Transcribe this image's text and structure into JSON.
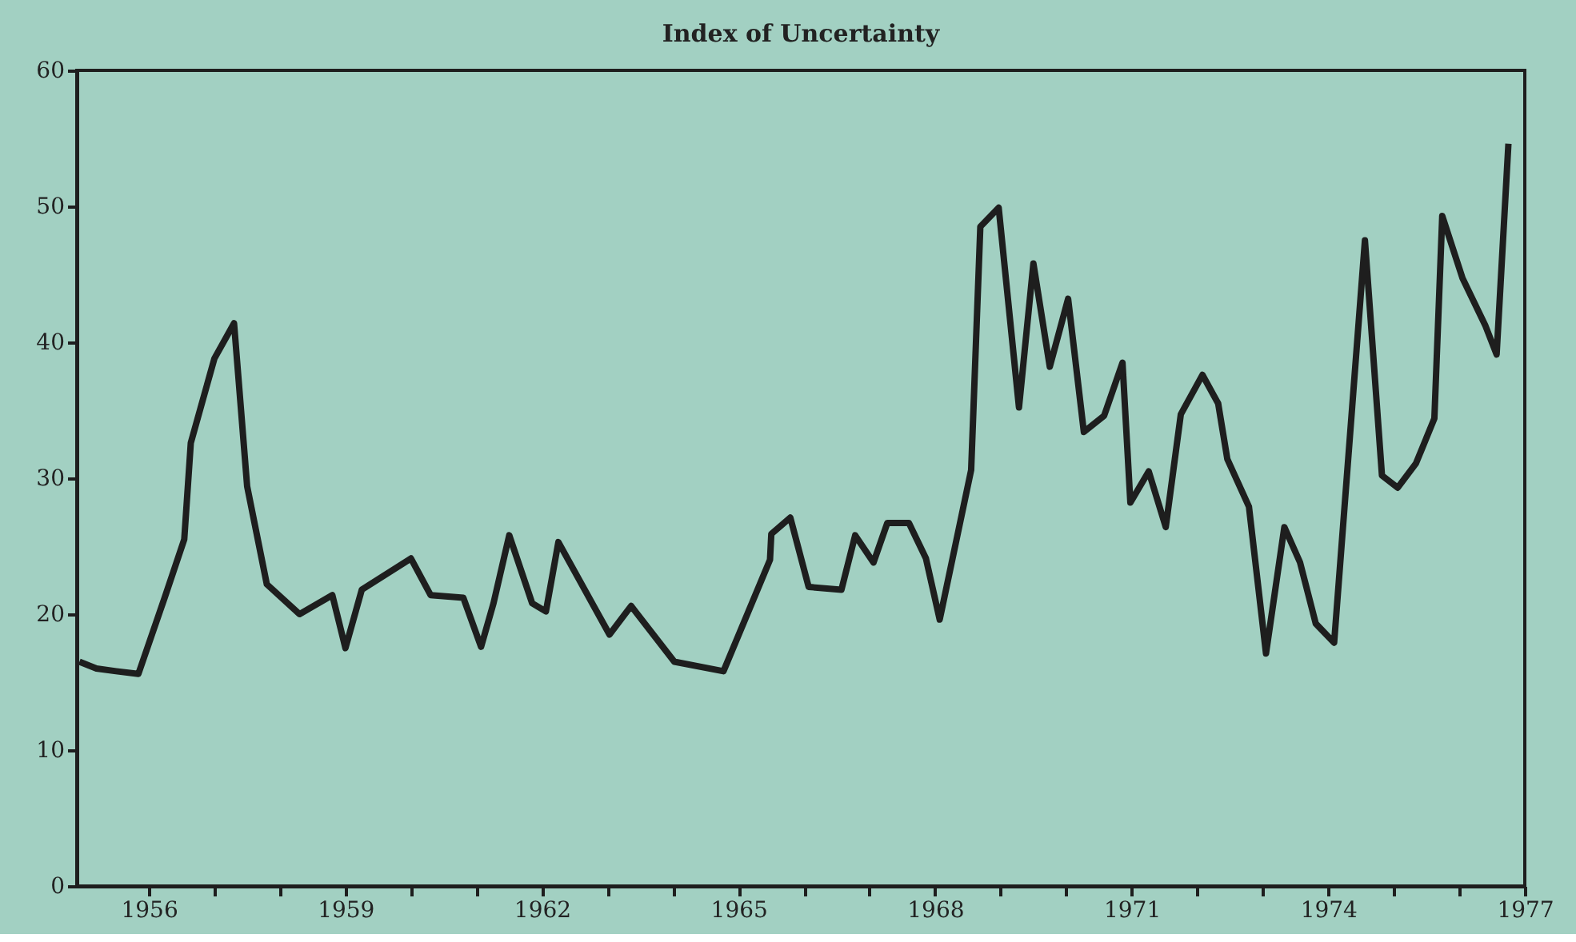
{
  "chart_data": {
    "type": "line",
    "title": "Index of Uncertainty",
    "x": [
      1954.94,
      1955.2,
      1955.5,
      1955.84,
      1956.24,
      1956.54,
      1956.64,
      1957.0,
      1957.3,
      1957.5,
      1957.8,
      1958.3,
      1958.8,
      1959.0,
      1959.25,
      1960.0,
      1960.3,
      1960.8,
      1961.07,
      1961.26,
      1961.5,
      1961.85,
      1962.06,
      1962.25,
      1963.03,
      1963.36,
      1964.02,
      1964.77,
      1965.48,
      1965.5,
      1965.79,
      1966.07,
      1966.57,
      1966.78,
      1967.06,
      1967.27,
      1967.6,
      1967.86,
      1968.07,
      1968.55,
      1968.69,
      1968.97,
      1969.28,
      1969.5,
      1969.75,
      1970.03,
      1970.27,
      1970.58,
      1970.86,
      1970.98,
      1971.26,
      1971.52,
      1971.75,
      1972.08,
      1972.32,
      1972.46,
      1972.79,
      1973.05,
      1973.33,
      1973.57,
      1973.81,
      1974.09,
      1974.56,
      1974.82,
      1975.06,
      1975.34,
      1975.62,
      1975.74,
      1976.05,
      1976.4,
      1976.57,
      1976.75
    ],
    "series": [
      {
        "color": "#1e1e1e",
        "values": [
          16.5,
          16.0,
          15.8,
          15.6,
          21.2,
          25.5,
          32.6,
          38.8,
          41.4,
          29.4,
          22.2,
          20.0,
          21.4,
          17.5,
          21.8,
          24.1,
          21.4,
          21.2,
          17.6,
          20.8,
          25.8,
          20.8,
          20.2,
          25.3,
          18.5,
          20.6,
          16.5,
          15.8,
          24.0,
          25.9,
          27.1,
          22.0,
          21.8,
          25.8,
          23.8,
          26.7,
          26.7,
          24.1,
          19.6,
          30.6,
          48.5,
          49.9,
          35.2,
          45.8,
          38.2,
          43.2,
          33.4,
          34.6,
          38.5,
          28.2,
          30.5,
          26.4,
          34.7,
          37.6,
          35.5,
          31.4,
          27.9,
          17.1,
          26.4,
          23.8,
          19.3,
          17.9,
          47.5,
          30.2,
          29.3,
          31.1,
          34.4,
          49.3,
          44.7,
          41.2,
          39.1,
          54.6
        ]
      }
    ],
    "xlim": [
      1954.9,
      1977
    ],
    "xticks": [
      1956,
      {
        "value": 1957,
        "label": null
      },
      {
        "value": 1958,
        "label": null
      },
      1959,
      {
        "value": 1960,
        "label": null
      },
      {
        "value": 1961,
        "label": null
      },
      1962,
      {
        "value": 1963,
        "label": null
      },
      {
        "value": 1964,
        "label": null
      },
      1965,
      {
        "value": 1966,
        "label": null
      },
      {
        "value": 1967,
        "label": null
      },
      1968,
      {
        "value": 1969,
        "label": null
      },
      {
        "value": 1970,
        "label": null
      },
      1971,
      {
        "value": 1972,
        "label": null
      },
      {
        "value": 1973,
        "label": null
      },
      1974,
      {
        "value": 1975,
        "label": null
      },
      {
        "value": 1976,
        "label": null
      },
      1977
    ],
    "ylim": [
      0,
      60
    ],
    "yticks": [
      0,
      10,
      20,
      30,
      40,
      50,
      60
    ],
    "grid": false,
    "legend": false,
    "marker": "none",
    "line_style": "solid"
  }
}
